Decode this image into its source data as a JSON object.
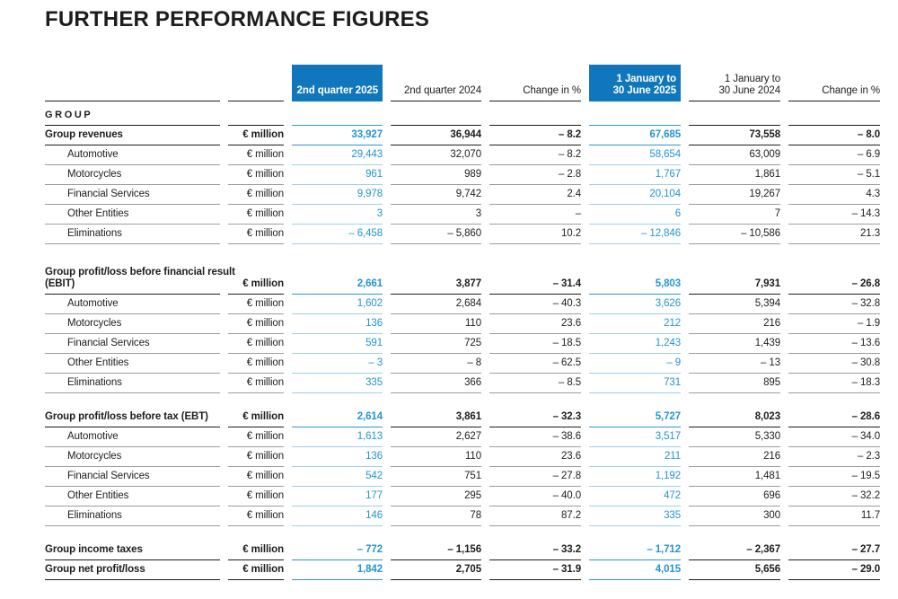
{
  "page": {
    "title": "FURTHER PERFORMANCE FIGURES"
  },
  "colors": {
    "ink": "#1d1d1b",
    "gray_line": "#9d9d9c",
    "highlight_header_bg": "#1077bc",
    "highlight_value_text": "#2594d2",
    "highlight_line_strong": "#2e96d3",
    "highlight_line_light": "#9fcfea"
  },
  "table": {
    "section": "GROUP",
    "columns": [
      {
        "id": "q2-2025",
        "line2": "2nd quarter 2025",
        "highlight": true
      },
      {
        "id": "q2-2024",
        "line2": "2nd quarter 2024",
        "highlight": false
      },
      {
        "id": "change-q2",
        "line2": "Change in %",
        "highlight": false
      },
      {
        "id": "h1-2025",
        "line1": "1 January to",
        "line2": "30 June 2025",
        "highlight": true
      },
      {
        "id": "h1-2024",
        "line1": "1 January to",
        "line2": "30 June 2024",
        "highlight": false
      },
      {
        "id": "change-h1",
        "line2": "Change in %",
        "highlight": false
      }
    ],
    "rows": [
      {
        "label": "Group revenues",
        "unit": "€ million",
        "bold": true,
        "values": [
          "33,927",
          "36,944",
          "– 8.2",
          "67,685",
          "73,558",
          "– 8.0"
        ]
      },
      {
        "label": "Automotive",
        "unit": "€ million",
        "indent": true,
        "values": [
          "29,443",
          "32,070",
          "– 8.2",
          "58,654",
          "63,009",
          "– 6.9"
        ]
      },
      {
        "label": "Motorcycles",
        "unit": "€ million",
        "indent": true,
        "values": [
          "961",
          "989",
          "– 2.8",
          "1,767",
          "1,861",
          "– 5.1"
        ]
      },
      {
        "label": "Financial Services",
        "unit": "€ million",
        "indent": true,
        "values": [
          "9,978",
          "9,742",
          "2.4",
          "20,104",
          "19,267",
          "4.3"
        ]
      },
      {
        "label": "Other Entities",
        "unit": "€ million",
        "indent": true,
        "values": [
          "3",
          "3",
          "–",
          "6",
          "7",
          "– 14.3"
        ]
      },
      {
        "label": "Eliminations",
        "unit": "€ million",
        "indent": true,
        "values": [
          "– 6,458",
          "– 5,860",
          "10.2",
          "– 12,846",
          "– 10,586",
          "21.3"
        ]
      },
      {
        "label_lines": [
          "Group profit/loss before financial result",
          "(EBIT)"
        ],
        "unit": "€ million",
        "bold": true,
        "tall": true,
        "gap_before": true,
        "values": [
          "2,661",
          "3,877",
          "– 31.4",
          "5,803",
          "7,931",
          "– 26.8"
        ]
      },
      {
        "label": "Automotive",
        "unit": "€ million",
        "indent": true,
        "values": [
          "1,602",
          "2,684",
          "– 40.3",
          "3,626",
          "5,394",
          "– 32.8"
        ]
      },
      {
        "label": "Motorcycles",
        "unit": "€ million",
        "indent": true,
        "values": [
          "136",
          "110",
          "23.6",
          "212",
          "216",
          "– 1.9"
        ]
      },
      {
        "label": "Financial Services",
        "unit": "€ million",
        "indent": true,
        "values": [
          "591",
          "725",
          "– 18.5",
          "1,243",
          "1,439",
          "– 13.6"
        ]
      },
      {
        "label": "Other Entities",
        "unit": "€ million",
        "indent": true,
        "values": [
          "– 3",
          "– 8",
          "– 62.5",
          "– 9",
          "– 13",
          "– 30.8"
        ]
      },
      {
        "label": "Eliminations",
        "unit": "€ million",
        "indent": true,
        "values": [
          "335",
          "366",
          "– 8.5",
          "731",
          "895",
          "– 18.3"
        ]
      },
      {
        "label": "Group profit/loss before tax (EBT)",
        "unit": "€ million",
        "bold": true,
        "gap_before": true,
        "values": [
          "2,614",
          "3,861",
          "– 32.3",
          "5,727",
          "8,023",
          "– 28.6"
        ]
      },
      {
        "label": "Automotive",
        "unit": "€ million",
        "indent": true,
        "values": [
          "1,613",
          "2,627",
          "– 38.6",
          "3,517",
          "5,330",
          "– 34.0"
        ]
      },
      {
        "label": "Motorcycles",
        "unit": "€ million",
        "indent": true,
        "values": [
          "136",
          "110",
          "23.6",
          "211",
          "216",
          "– 2.3"
        ]
      },
      {
        "label": "Financial Services",
        "unit": "€ million",
        "indent": true,
        "values": [
          "542",
          "751",
          "– 27.8",
          "1,192",
          "1,481",
          "– 19.5"
        ]
      },
      {
        "label": "Other Entities",
        "unit": "€ million",
        "indent": true,
        "values": [
          "177",
          "295",
          "– 40.0",
          "472",
          "696",
          "– 32.2"
        ]
      },
      {
        "label": "Eliminations",
        "unit": "€ million",
        "indent": true,
        "values": [
          "146",
          "78",
          "87.2",
          "335",
          "300",
          "11.7"
        ]
      },
      {
        "label": "Group income taxes",
        "unit": "€ million",
        "bold": true,
        "gap_before": true,
        "values": [
          "– 772",
          "– 1,156",
          "– 33.2",
          "– 1,712",
          "– 2,367",
          "– 27.7"
        ]
      },
      {
        "label": "Group net profit/loss",
        "unit": "€ million",
        "bold": true,
        "values": [
          "1,842",
          "2,705",
          "– 31.9",
          "4,015",
          "5,656",
          "– 29.0"
        ]
      }
    ]
  }
}
